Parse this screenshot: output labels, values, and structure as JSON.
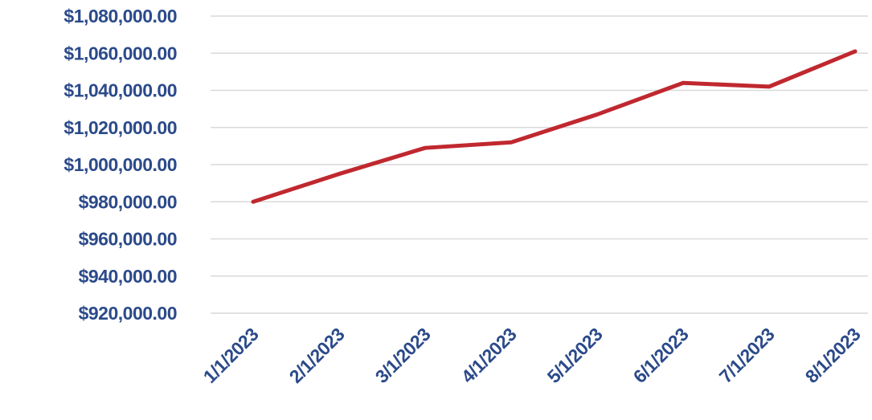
{
  "chart_data": {
    "type": "line",
    "title": "",
    "xlabel": "",
    "ylabel": "",
    "categories": [
      "1/1/2023",
      "2/1/2023",
      "3/1/2023",
      "4/1/2023",
      "5/1/2023",
      "6/1/2023",
      "7/1/2023",
      "8/1/2023"
    ],
    "series": [
      {
        "values": [
          980000,
          995000,
          1009000,
          1012000,
          1027000,
          1044000,
          1042000,
          1061000
        ],
        "color": "#c0282f"
      }
    ],
    "ylim": [
      920000,
      1080000
    ],
    "yticks": [
      920000,
      940000,
      960000,
      980000,
      1000000,
      1020000,
      1040000,
      1060000,
      1080000
    ],
    "ytick_labels": [
      "$920,000.00",
      "$940,000.00",
      "$960,000.00",
      "$980,000.00",
      "$1,000,000.00",
      "$1,020,000.00",
      "$1,040,000.00",
      "$1,060,000.00",
      "$1,080,000.00"
    ],
    "grid": true,
    "legend": "none"
  }
}
